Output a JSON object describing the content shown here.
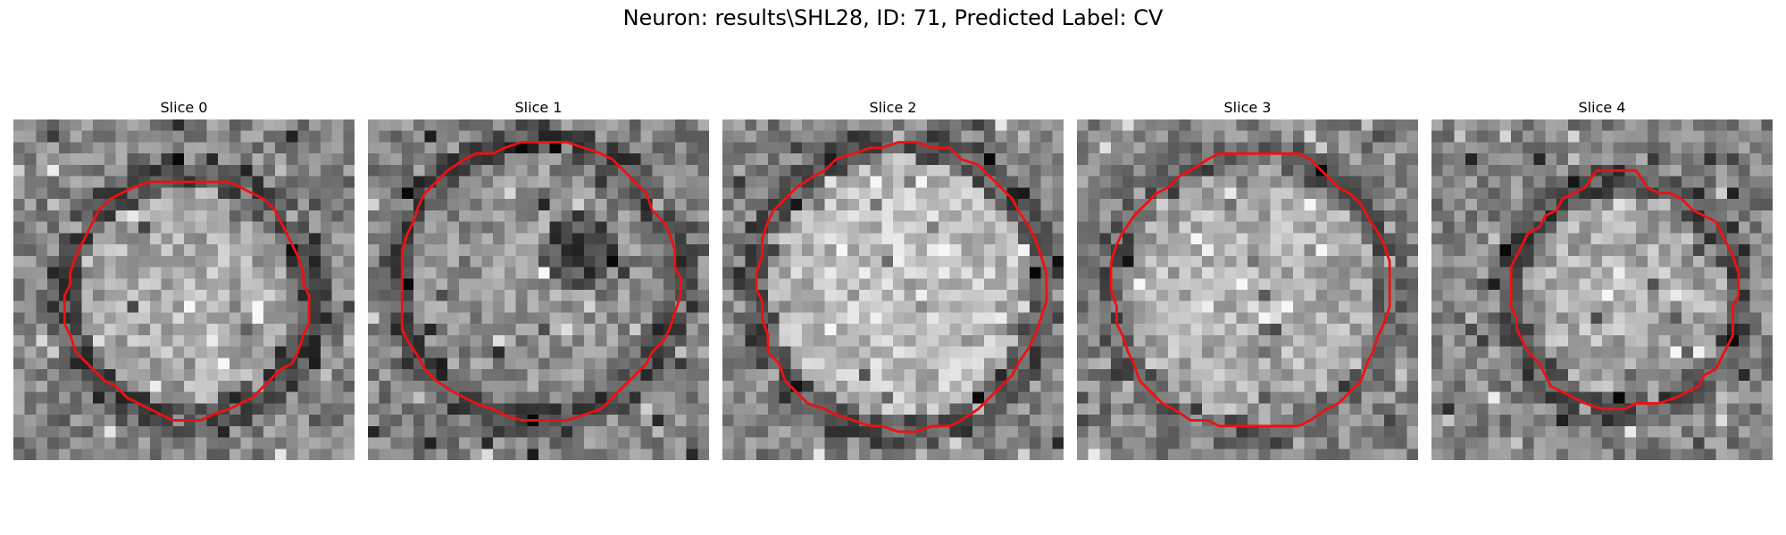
{
  "figure": {
    "title": "Neuron: results\\SHL28, ID: 71, Predicted Label: CV"
  },
  "panels": [
    {
      "title": "Slice 0"
    },
    {
      "title": "Slice 1"
    },
    {
      "title": "Slice 2"
    },
    {
      "title": "Slice 3"
    },
    {
      "title": "Slice 4"
    }
  ],
  "colors": {
    "contour": "#ee1111",
    "background": "#ffffff"
  }
}
